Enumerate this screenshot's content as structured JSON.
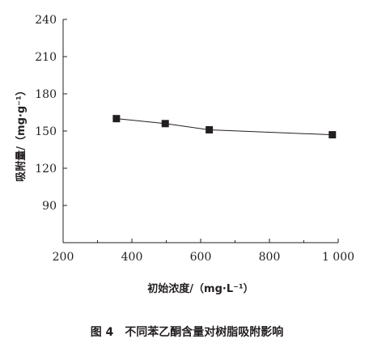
{
  "chart_data": {
    "type": "line",
    "xlabel": "初始浓度/（mg·L⁻¹）",
    "ylabel": "吸附量/（mg·g⁻¹）",
    "xlim": [
      200,
      1000
    ],
    "ylim": [
      60,
      240
    ],
    "x_ticks": [
      200,
      400,
      600,
      800,
      1000
    ],
    "x_tick_labels": [
      "200",
      "400",
      "600",
      "800",
      "1 000"
    ],
    "y_ticks": [
      90,
      120,
      150,
      180,
      210,
      240
    ],
    "y_tick_labels": [
      "90",
      "120",
      "150",
      "180",
      "210",
      "240"
    ],
    "series": [
      {
        "marker": "square",
        "x": [
          355,
          497,
          625,
          983
        ],
        "y": [
          160,
          156,
          151,
          147
        ]
      }
    ],
    "grid": false
  },
  "caption": "图 4　不同苯乙酮含量对树脂吸附影响"
}
